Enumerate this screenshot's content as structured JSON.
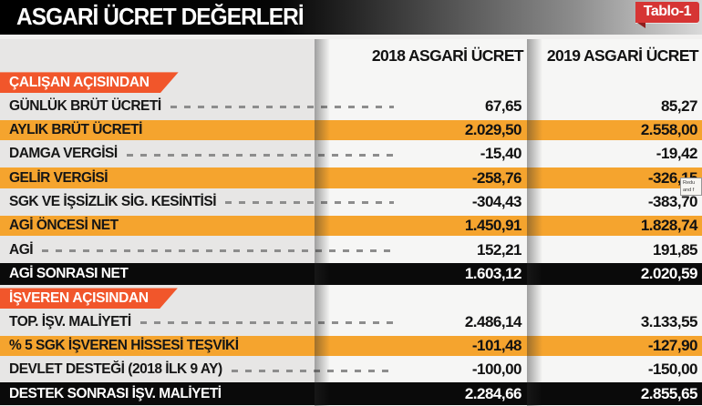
{
  "header": {
    "title": "ASGARİ ÜCRET DEĞERLERİ",
    "badge": "Tablo-1"
  },
  "columns": {
    "col2018": "2018 ASGARİ ÜCRET",
    "col2019": "2019 ASGARİ ÜCRET"
  },
  "colors": {
    "highlight_orange": "#f5a42e",
    "section_orange": "#f1562b",
    "badge_red": "#d63534",
    "total_black": "#0a0a0a",
    "page_bg": "#e7e6e5",
    "band_bg": "#f6f6f5"
  },
  "tooltip": {
    "line1": "Redu",
    "line2": "and f"
  },
  "rows": [
    {
      "type": "section",
      "label": "ÇALIŞAN AÇISINDAN"
    },
    {
      "type": "plain",
      "label": "GÜNLÜK BRÜT ÜCRETİ",
      "v2018": "67,65",
      "v2019": "85,27"
    },
    {
      "type": "orange",
      "label": "AYLIK BRÜT ÜCRETİ",
      "v2018": "2.029,50",
      "v2019": "2.558,00"
    },
    {
      "type": "plain",
      "label": "DAMGA VERGİSİ",
      "v2018": "-15,40",
      "v2019": "-19,42"
    },
    {
      "type": "orange",
      "label": "GELİR VERGİSİ",
      "v2018": "-258,76",
      "v2019": "-326,15"
    },
    {
      "type": "plain",
      "label": "SGK VE İŞSİZLİK SİG. KESİNTİSİ",
      "v2018": "-304,43",
      "v2019": "-383,70"
    },
    {
      "type": "orange",
      "label": "AGİ ÖNCESİ NET",
      "v2018": "1.450,91",
      "v2019": "1.828,74"
    },
    {
      "type": "plain",
      "label": "AGİ",
      "v2018": "152,21",
      "v2019": "191,85"
    },
    {
      "type": "total",
      "label": "AGİ SONRASI NET",
      "v2018": "1.603,12",
      "v2019": "2.020,59"
    },
    {
      "type": "section",
      "label": "İŞVEREN AÇISINDAN"
    },
    {
      "type": "plain",
      "label": "TOP. İŞV. MALİYETİ",
      "v2018": "2.486,14",
      "v2019": "3.133,55"
    },
    {
      "type": "orange",
      "label": "% 5 SGK İŞVEREN HİSSESİ TEŞVİKİ",
      "v2018": "-101,48",
      "v2019": "-127,90"
    },
    {
      "type": "plain",
      "label": "DEVLET DESTEĞİ (2018 İLK 9 AY)",
      "v2018": "-100,00",
      "v2019": "-150,00"
    },
    {
      "type": "total",
      "label": "DESTEK SONRASI İŞV. MALİYETİ",
      "v2018": "2.284,66",
      "v2019": "2.855,65"
    }
  ],
  "chart_data": {
    "type": "table",
    "title": "ASGARİ ÜCRET DEĞERLERİ",
    "columns": [
      "2018 ASGARİ ÜCRET",
      "2019 ASGARİ ÜCRET"
    ],
    "sections": [
      "ÇALIŞAN AÇISINDAN",
      "İŞVEREN AÇISINDAN"
    ],
    "categories": [
      "GÜNLÜK BRÜT ÜCRETİ",
      "AYLIK BRÜT ÜCRETİ",
      "DAMGA VERGİSİ",
      "GELİR VERGİSİ",
      "SGK VE İŞSİZLİK SİG. KESİNTİSİ",
      "AGİ ÖNCESİ NET",
      "AGİ",
      "AGİ SONRASI NET",
      "TOP. İŞV. MALİYETİ",
      "% 5 SGK İŞVEREN HİSSESİ TEŞVİKİ",
      "DEVLET DESTEĞİ (2018 İLK 9 AY)",
      "DESTEK SONRASI İŞV. MALİYETİ"
    ],
    "series": [
      {
        "name": "2018 ASGARİ ÜCRET",
        "values": [
          67.65,
          2029.5,
          -15.4,
          -258.76,
          -304.43,
          1450.91,
          152.21,
          1603.12,
          2486.14,
          -101.48,
          -100.0,
          2284.66
        ]
      },
      {
        "name": "2019 ASGARİ ÜCRET",
        "values": [
          85.27,
          2558.0,
          -19.42,
          -326.15,
          -383.7,
          1828.74,
          191.85,
          2020.59,
          3133.55,
          -127.9,
          -150.0,
          2855.65
        ]
      }
    ]
  }
}
